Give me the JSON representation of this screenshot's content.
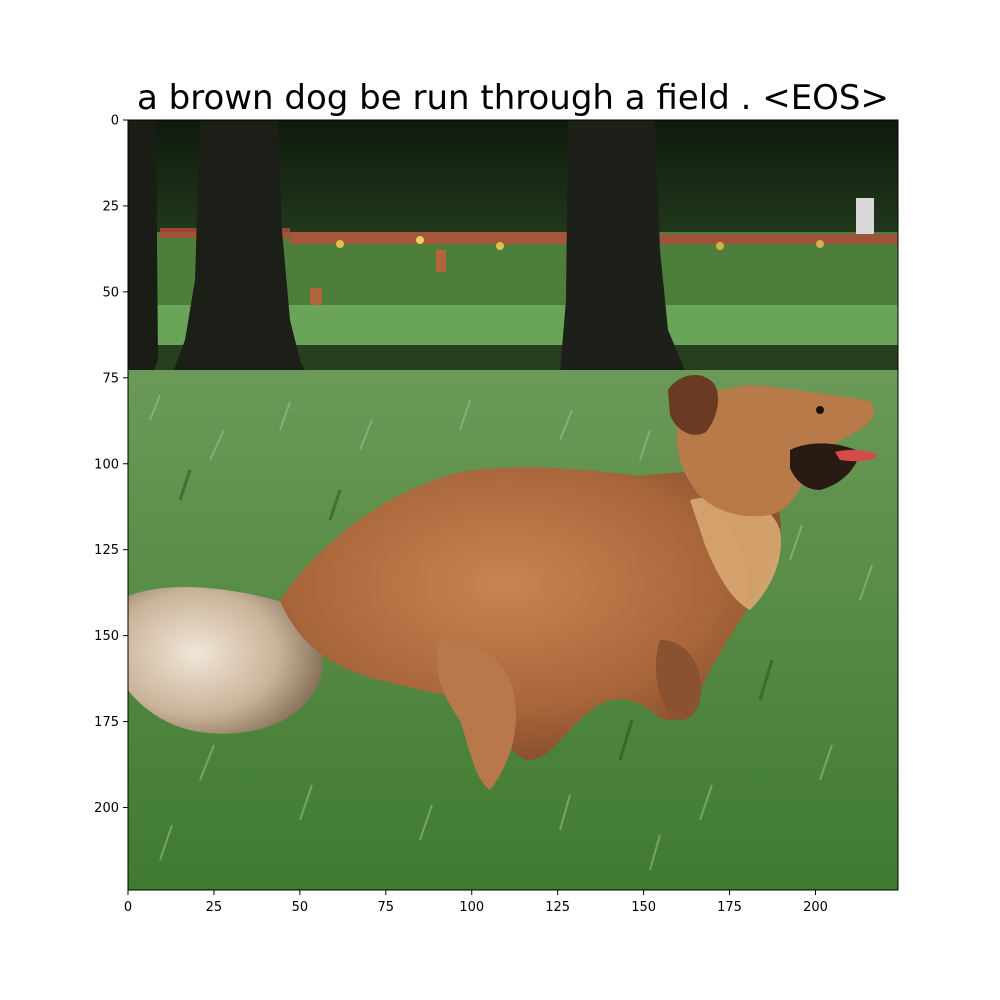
{
  "figure": {
    "title": "a brown dog be run through a field . <EOS>",
    "image_content": {
      "subject": "dog",
      "subject_color": "brown",
      "background": "grassy field with trees and flowers"
    },
    "axes": {
      "x": {
        "range": [
          0,
          224
        ],
        "ticks": [
          {
            "value": 0,
            "label": "0"
          },
          {
            "value": 25,
            "label": "25"
          },
          {
            "value": 50,
            "label": "50"
          },
          {
            "value": 75,
            "label": "75"
          },
          {
            "value": 100,
            "label": "100"
          },
          {
            "value": 125,
            "label": "125"
          },
          {
            "value": 150,
            "label": "150"
          },
          {
            "value": 175,
            "label": "175"
          },
          {
            "value": 200,
            "label": "200"
          }
        ]
      },
      "y": {
        "range": [
          0,
          224
        ],
        "inverted": true,
        "ticks": [
          {
            "value": 0,
            "label": "0"
          },
          {
            "value": 25,
            "label": "25"
          },
          {
            "value": 50,
            "label": "50"
          },
          {
            "value": 75,
            "label": "75"
          },
          {
            "value": 100,
            "label": "100"
          },
          {
            "value": 125,
            "label": "125"
          },
          {
            "value": 150,
            "label": "150"
          },
          {
            "value": 175,
            "label": "175"
          },
          {
            "value": 200,
            "label": "200"
          }
        ]
      }
    },
    "colors": {
      "grass": "#4f8a3e",
      "grass_dark": "#2f5e25",
      "trees": "#1a2416",
      "dog": "#a8663a",
      "dog_light": "#d9a772"
    }
  }
}
